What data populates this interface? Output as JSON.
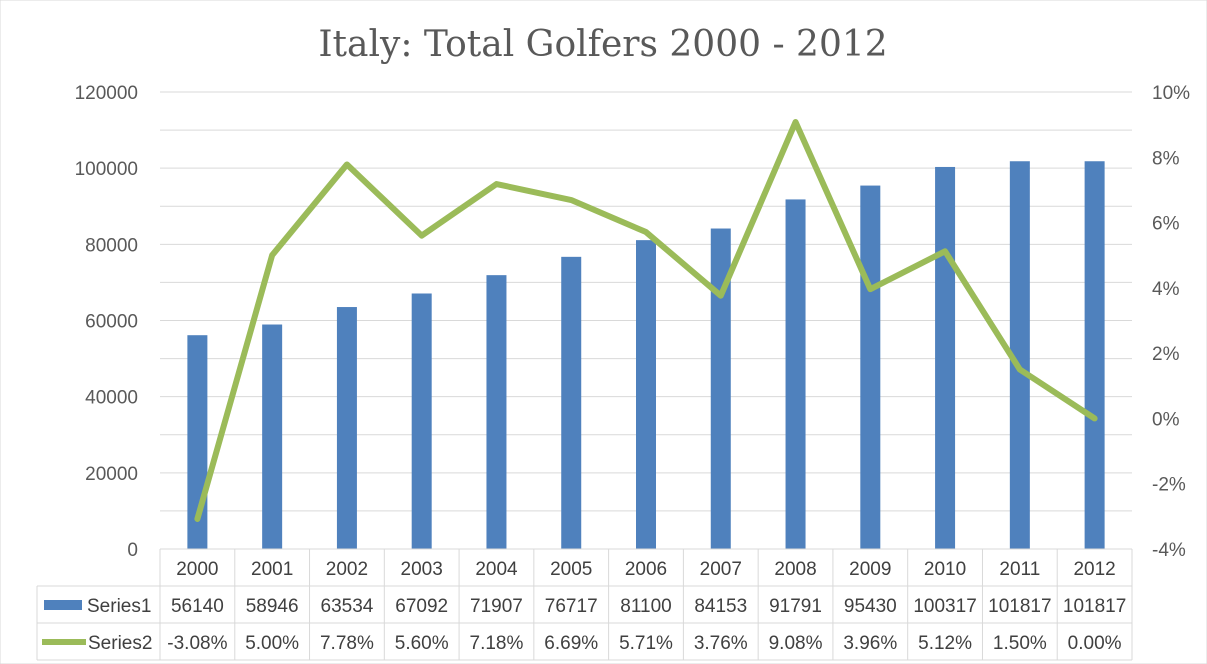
{
  "chart_data": {
    "type": "bar",
    "title": "Italy: Total Golfers 2000 - 2012",
    "categories": [
      "2000",
      "2001",
      "2002",
      "2003",
      "2004",
      "2005",
      "2006",
      "2007",
      "2008",
      "2009",
      "2010",
      "2011",
      "2012"
    ],
    "series": [
      {
        "name": "Series1",
        "type": "bar",
        "axis": "left",
        "color": "#4f81bd",
        "values": [
          56140,
          58946,
          63534,
          67092,
          71907,
          76717,
          81100,
          84153,
          91791,
          95430,
          100317,
          101817,
          101817
        ],
        "labels": [
          "56140",
          "58946",
          "63534",
          "67092",
          "71907",
          "76717",
          "81100",
          "84153",
          "91791",
          "95430",
          "100317",
          "101817",
          "101817"
        ]
      },
      {
        "name": "Series2",
        "type": "line",
        "axis": "right",
        "color": "#9bbb59",
        "values": [
          -3.08,
          5.0,
          7.78,
          5.6,
          7.18,
          6.69,
          5.71,
          3.76,
          9.08,
          3.96,
          5.12,
          1.5,
          0.0
        ],
        "labels": [
          "-3.08%",
          "5.00%",
          "7.78%",
          "5.60%",
          "7.18%",
          "6.69%",
          "5.71%",
          "3.76%",
          "9.08%",
          "3.96%",
          "5.12%",
          "1.50%",
          "0.00%"
        ]
      }
    ],
    "y_left": {
      "ylim": [
        0,
        120000
      ],
      "ticks": [
        0,
        20000,
        40000,
        60000,
        80000,
        100000,
        120000
      ],
      "tick_labels": [
        "0",
        "20000",
        "40000",
        "60000",
        "80000",
        "100000",
        "120000"
      ]
    },
    "y_right": {
      "ylim": [
        -4,
        10
      ],
      "ticks": [
        -4,
        -2,
        0,
        2,
        4,
        6,
        8,
        10
      ],
      "tick_labels": [
        "-4%",
        "-2%",
        "0%",
        "2%",
        "4%",
        "6%",
        "8%",
        "10%"
      ]
    },
    "grid": true,
    "legend": "data-table"
  }
}
